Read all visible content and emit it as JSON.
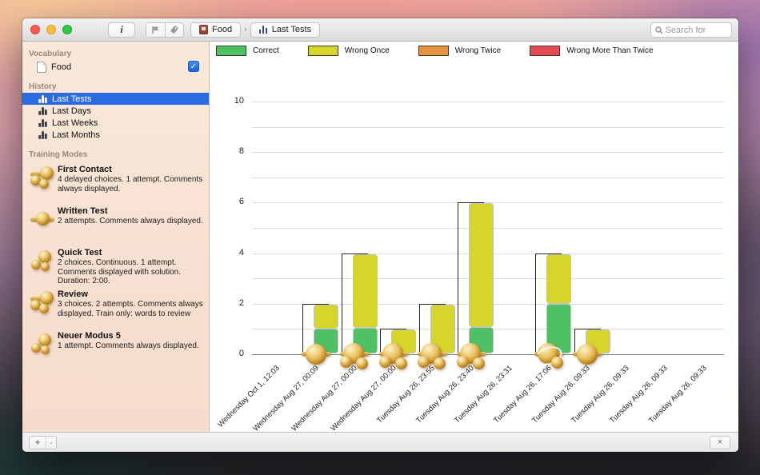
{
  "window": {
    "toolbar": {
      "info_label": "i",
      "icons": [
        "info-icon",
        "flag-icon",
        "tag-icon"
      ],
      "breadcrumb": [
        {
          "label": "Food",
          "icon": "notebook-icon"
        },
        {
          "label": "Last Tests",
          "icon": "bar-chart-icon"
        }
      ],
      "breadcrumb_separator": "›",
      "search_placeholder": "Search for"
    },
    "sidebar": {
      "vocabulary_header": "Vocabulary",
      "vocabulary": [
        {
          "label": "Food",
          "icon": "document-icon",
          "checked": true
        }
      ],
      "history_header": "History",
      "history": [
        {
          "label": "Last Tests",
          "icon": "bar-chart-icon",
          "selected": true
        },
        {
          "label": "Last Days",
          "icon": "bar-chart-icon",
          "selected": false
        },
        {
          "label": "Last Weeks",
          "icon": "bar-chart-icon",
          "selected": false
        },
        {
          "label": "Last Months",
          "icon": "bar-chart-icon",
          "selected": false
        }
      ],
      "training_header": "Training Modes",
      "training_modes": [
        {
          "title": "First Contact",
          "desc": "4 delayed choices. 1 attempt. Comments always displayed.",
          "icon": "beads-3"
        },
        {
          "title": "Written Test",
          "desc": "2 attempts. Comments always displayed.",
          "icon": "beads-1"
        },
        {
          "title": "Quick Test",
          "desc": "2 choices. Continuous. 1 attempt. Comments displayed with solution. Duration: 2:00.",
          "icon": "beads-2"
        },
        {
          "title": "Review",
          "desc": "3 choices. 2 attempts. Comments always displayed. Train only: words to review",
          "icon": "beads-3"
        },
        {
          "title": "Neuer Modus 5",
          "desc": "1 attempt. Comments always displayed.",
          "icon": "beads-2"
        }
      ],
      "selected_color": "#2a6ce0"
    },
    "bottom_bar": {
      "add_label": "+",
      "add_caret": "⌄",
      "close_label": "×"
    }
  },
  "chart_data": {
    "type": "bar",
    "stacked": true,
    "title": "",
    "xlabel": "",
    "ylabel": "",
    "ylim": [
      0,
      10
    ],
    "y_ticks": [
      0,
      2,
      4,
      6,
      8,
      10
    ],
    "grid_step": 1,
    "grid": true,
    "legend_position": "top",
    "legend": [
      {
        "label": "Correct",
        "color": "#4fc063"
      },
      {
        "label": "Wrong Once",
        "color": "#d6d52b"
      },
      {
        "label": "Wrong Twice",
        "color": "#e6923e"
      },
      {
        "label": "Wrong More Than Twice",
        "color": "#e24b53"
      }
    ],
    "categories": [
      "Wednesday Oct 1, 12:03",
      "Wednesday Aug 27, 00:09",
      "Wednesday Aug 27, 00:00",
      "Wednesday Aug 27, 00:00",
      "Tuesday Aug 26, 23:55",
      "Tuesday Aug 26, 23:40",
      "Tuesday Aug 26, 23:31",
      "Tuesday Aug 26, 17:06",
      "Tuesday Aug 26, 09:33",
      "Tuesday Aug 26, 09:33",
      "Tuesday Aug 26, 09:33",
      "Tuesday Aug 26, 09:33"
    ],
    "series": [
      {
        "name": "Correct",
        "values": [
          0,
          1,
          1,
          0,
          0,
          1,
          0,
          2,
          0,
          0,
          0,
          0
        ]
      },
      {
        "name": "Wrong Once",
        "values": [
          0,
          1,
          3,
          1,
          2,
          5,
          0,
          2,
          1,
          0,
          0,
          0
        ]
      },
      {
        "name": "Wrong Twice",
        "values": [
          0,
          0,
          0,
          0,
          0,
          0,
          0,
          0,
          0,
          0,
          0,
          0
        ]
      },
      {
        "name": "Wrong More Than Twice",
        "values": [
          0,
          0,
          0,
          0,
          0,
          0,
          0,
          0,
          0,
          0,
          0,
          0
        ]
      }
    ],
    "point_icons": [
      null,
      "bead-1",
      "bead-3",
      "bead-3",
      "bead-3",
      "bead-3",
      null,
      "bead-swirl",
      "bead-1",
      null,
      null,
      null
    ]
  }
}
